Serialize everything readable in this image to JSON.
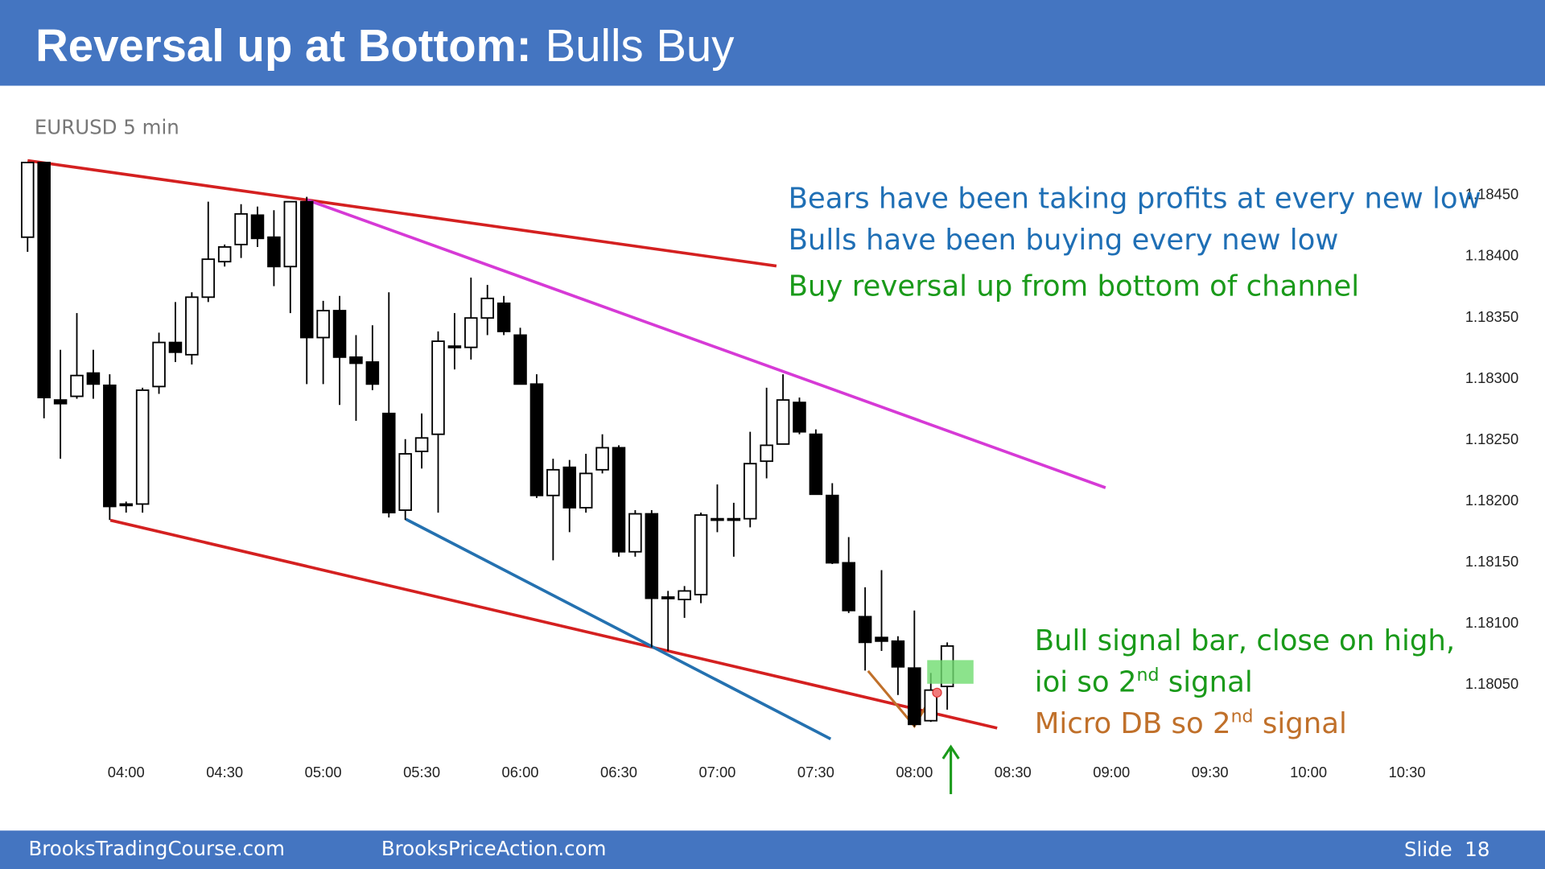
{
  "header": {
    "title_bold": "Reversal up at Bottom:",
    "title_rest": "Bulls Buy"
  },
  "chart_data": {
    "type": "candlestick",
    "subtitle": "EURUSD 5 min",
    "x": [
      210,
      215,
      220,
      225,
      230,
      235,
      240,
      245,
      250,
      255,
      260,
      265,
      270,
      275,
      280,
      285,
      290,
      295,
      300,
      305,
      310,
      315,
      320,
      325,
      330,
      335,
      340,
      345,
      350,
      355,
      360,
      365,
      370,
      375,
      380,
      385,
      390,
      395,
      400,
      405,
      410,
      415,
      420,
      425,
      430,
      435,
      440,
      445,
      450,
      455,
      460,
      465,
      470,
      475,
      480,
      485,
      490
    ],
    "open": [
      1.18415,
      1.18476,
      1.18282,
      1.18285,
      1.18304,
      1.18294,
      1.18196,
      1.18197,
      1.18293,
      1.18329,
      1.18319,
      1.18366,
      1.18395,
      1.18409,
      1.18433,
      1.18415,
      1.18391,
      1.18444,
      1.18333,
      1.18355,
      1.18317,
      1.18313,
      1.18271,
      1.18192,
      1.1824,
      1.18254,
      1.18325,
      1.18325,
      1.18349,
      1.18361,
      1.18335,
      1.18295,
      1.18204,
      1.18227,
      1.18194,
      1.18225,
      1.18243,
      1.18158,
      1.18189,
      1.1812,
      1.18119,
      1.18123,
      1.18184,
      1.18185,
      1.18185,
      1.18232,
      1.18246,
      1.1828,
      1.18254,
      1.18204,
      1.18149,
      1.18105,
      1.18088,
      1.18085,
      1.18063,
      1.1802,
      1.18048
    ],
    "high": [
      1.18476,
      1.18476,
      1.18323,
      1.18353,
      1.18323,
      1.18303,
      1.18199,
      1.18292,
      1.18337,
      1.18362,
      1.1837,
      1.18444,
      1.18409,
      1.18442,
      1.1844,
      1.18437,
      1.18444,
      1.18448,
      1.18363,
      1.18367,
      1.18335,
      1.18343,
      1.1837,
      1.1825,
      1.18271,
      1.18338,
      1.18353,
      1.18382,
      1.18376,
      1.18367,
      1.18341,
      1.18303,
      1.18234,
      1.18233,
      1.18238,
      1.18254,
      1.18245,
      1.18192,
      1.18192,
      1.18126,
      1.1813,
      1.1819,
      1.18213,
      1.18198,
      1.18256,
      1.18292,
      1.18303,
      1.18284,
      1.18258,
      1.18214,
      1.1817,
      1.18129,
      1.18143,
      1.18089,
      1.1811,
      1.18059,
      1.18084
    ],
    "low": [
      1.18403,
      1.18267,
      1.18234,
      1.18283,
      1.18283,
      1.18184,
      1.1819,
      1.1819,
      1.18287,
      1.18313,
      1.18311,
      1.18362,
      1.18391,
      1.18398,
      1.18407,
      1.18375,
      1.18353,
      1.18295,
      1.18295,
      1.18278,
      1.18265,
      1.1829,
      1.18186,
      1.18184,
      1.18226,
      1.1819,
      1.18307,
      1.18315,
      1.18335,
      1.18335,
      1.18295,
      1.18202,
      1.18151,
      1.18174,
      1.1819,
      1.18222,
      1.18154,
      1.18154,
      1.1808,
      1.18077,
      1.18104,
      1.18116,
      1.18174,
      1.18154,
      1.18178,
      1.18218,
      1.18246,
      1.18254,
      1.18205,
      1.18148,
      1.18108,
      1.18061,
      1.18077,
      1.18041,
      1.18015,
      1.18019,
      1.18029
    ],
    "close": [
      1.18476,
      1.18284,
      1.18279,
      1.18302,
      1.18295,
      1.18195,
      1.18197,
      1.1829,
      1.18329,
      1.18321,
      1.18366,
      1.18397,
      1.18407,
      1.18434,
      1.18414,
      1.18391,
      1.18444,
      1.18333,
      1.18355,
      1.18317,
      1.18312,
      1.18295,
      1.1819,
      1.18238,
      1.18251,
      1.1833,
      1.18326,
      1.18349,
      1.18365,
      1.18338,
      1.18295,
      1.18204,
      1.18225,
      1.18194,
      1.18222,
      1.18243,
      1.18158,
      1.18189,
      1.1812,
      1.18121,
      1.18126,
      1.18188,
      1.18185,
      1.18184,
      1.1823,
      1.18245,
      1.18282,
      1.18256,
      1.18205,
      1.18149,
      1.1811,
      1.18084,
      1.18085,
      1.18064,
      1.18017,
      1.18045,
      1.18081
    ],
    "up_color": "#ffffff",
    "down_color": "#000000",
    "xlim": [
      207,
      645
    ],
    "xticks": [
      {
        "value": 240,
        "label": "04:00"
      },
      {
        "value": 270,
        "label": "04:30"
      },
      {
        "value": 300,
        "label": "05:00"
      },
      {
        "value": 330,
        "label": "05:30"
      },
      {
        "value": 360,
        "label": "06:00"
      },
      {
        "value": 390,
        "label": "06:30"
      },
      {
        "value": 420,
        "label": "07:00"
      },
      {
        "value": 450,
        "label": "07:30"
      },
      {
        "value": 480,
        "label": "08:00"
      },
      {
        "value": 510,
        "label": "08:30"
      },
      {
        "value": 540,
        "label": "09:00"
      },
      {
        "value": 570,
        "label": "09:30"
      },
      {
        "value": 600,
        "label": "10:00"
      },
      {
        "value": 630,
        "label": "10:30"
      }
    ],
    "ylim": [
      1.17989,
      1.18484
    ],
    "yticks": [
      {
        "value": 1.1845,
        "label": "1.18450"
      },
      {
        "value": 1.184,
        "label": "1.18400"
      },
      {
        "value": 1.1835,
        "label": "1.18350"
      },
      {
        "value": 1.183,
        "label": "1.18300"
      },
      {
        "value": 1.1825,
        "label": "1.18250"
      },
      {
        "value": 1.182,
        "label": "1.18200"
      },
      {
        "value": 1.1815,
        "label": "1.18150"
      },
      {
        "value": 1.181,
        "label": "1.18100"
      },
      {
        "value": 1.1805,
        "label": "1.18050"
      }
    ],
    "annotations": [
      {
        "color": "#1f6fb5",
        "parts": [
          {
            "text": "Bears have been taking profits at every new low"
          }
        ]
      },
      {
        "color": "#1f6fb5",
        "parts": [
          {
            "text": "Bulls have been buying every new low"
          }
        ]
      },
      {
        "color": "#1a9a1a",
        "parts": [
          {
            "text": "Buy reversal up from bottom of channel"
          }
        ]
      },
      {
        "color": "#1a9a1a",
        "parts": [
          {
            "text": "Bull signal bar, close on high,"
          }
        ]
      },
      {
        "color": "#1a9a1a",
        "parts": [
          {
            "text": "ioi so 2"
          },
          {
            "text": "nd",
            "sup": true
          },
          {
            "text": " signal"
          }
        ]
      },
      {
        "color": "#c0702a",
        "parts": [
          {
            "text": "Micro DB so 2"
          },
          {
            "text": "nd",
            "sup": true
          },
          {
            "text": " signal"
          }
        ]
      }
    ]
  },
  "footer": {
    "left": "BrooksTradingCourse.com",
    "center": "BrooksPriceAction.com",
    "slide": "Slide  18"
  }
}
